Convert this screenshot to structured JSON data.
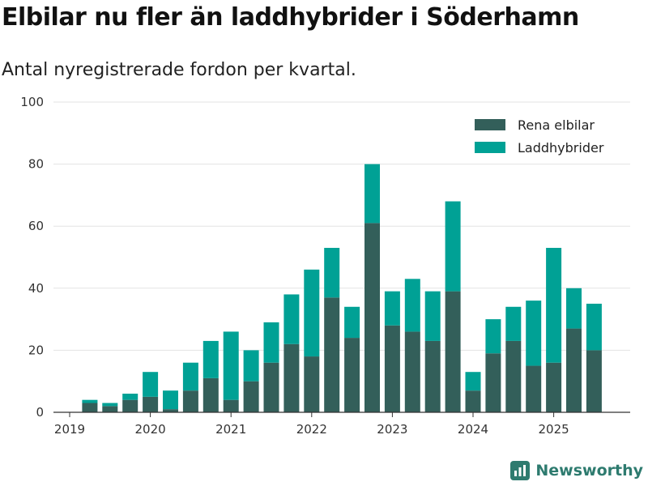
{
  "chart_data": {
    "type": "bar",
    "stacked": true,
    "title": "Elbilar nu fler än laddhybrider i Söderhamn",
    "subtitle": "Antal nyregistrerade fordon per kvartal.",
    "xlabel": "",
    "ylabel": "",
    "ylim": [
      0,
      100
    ],
    "yticks": [
      "0",
      "20",
      "40",
      "60",
      "80",
      "100"
    ],
    "xticks": [
      {
        "label": "2019",
        "index": 0
      },
      {
        "label": "2020",
        "index": 4
      },
      {
        "label": "2021",
        "index": 8
      },
      {
        "label": "2022",
        "index": 12
      },
      {
        "label": "2023",
        "index": 16
      },
      {
        "label": "2024",
        "index": 20
      },
      {
        "label": "2025",
        "index": 24
      }
    ],
    "categories": [
      "2019 Q1",
      "2019 Q2",
      "2019 Q3",
      "2019 Q4",
      "2020 Q1",
      "2020 Q2",
      "2020 Q3",
      "2020 Q4",
      "2021 Q1",
      "2021 Q2",
      "2021 Q3",
      "2021 Q4",
      "2022 Q1",
      "2022 Q2",
      "2022 Q3",
      "2022 Q4",
      "2023 Q1",
      "2023 Q2",
      "2023 Q3",
      "2023 Q4",
      "2024 Q1",
      "2024 Q2",
      "2024 Q3",
      "2024 Q4",
      "2025 Q1",
      "2025 Q2",
      "2025 Q3",
      "2025 Q4"
    ],
    "series": [
      {
        "name": "Rena elbilar",
        "color": "#335f5a",
        "values": [
          0,
          3,
          2,
          4,
          5,
          1,
          7,
          11,
          4,
          10,
          16,
          22,
          18,
          37,
          24,
          61,
          28,
          26,
          23,
          39,
          7,
          19,
          23,
          15,
          16,
          27,
          20,
          0
        ]
      },
      {
        "name": "Laddhybrider",
        "color": "#00a195",
        "values": [
          0,
          1,
          1,
          2,
          8,
          6,
          9,
          12,
          22,
          10,
          13,
          16,
          28,
          16,
          10,
          19,
          11,
          17,
          16,
          29,
          6,
          11,
          11,
          21,
          37,
          13,
          15,
          0
        ]
      }
    ],
    "legend_position": "top-right",
    "grid": true
  },
  "brand": {
    "name": "Newsworthy",
    "color": "#2e7b6f"
  }
}
